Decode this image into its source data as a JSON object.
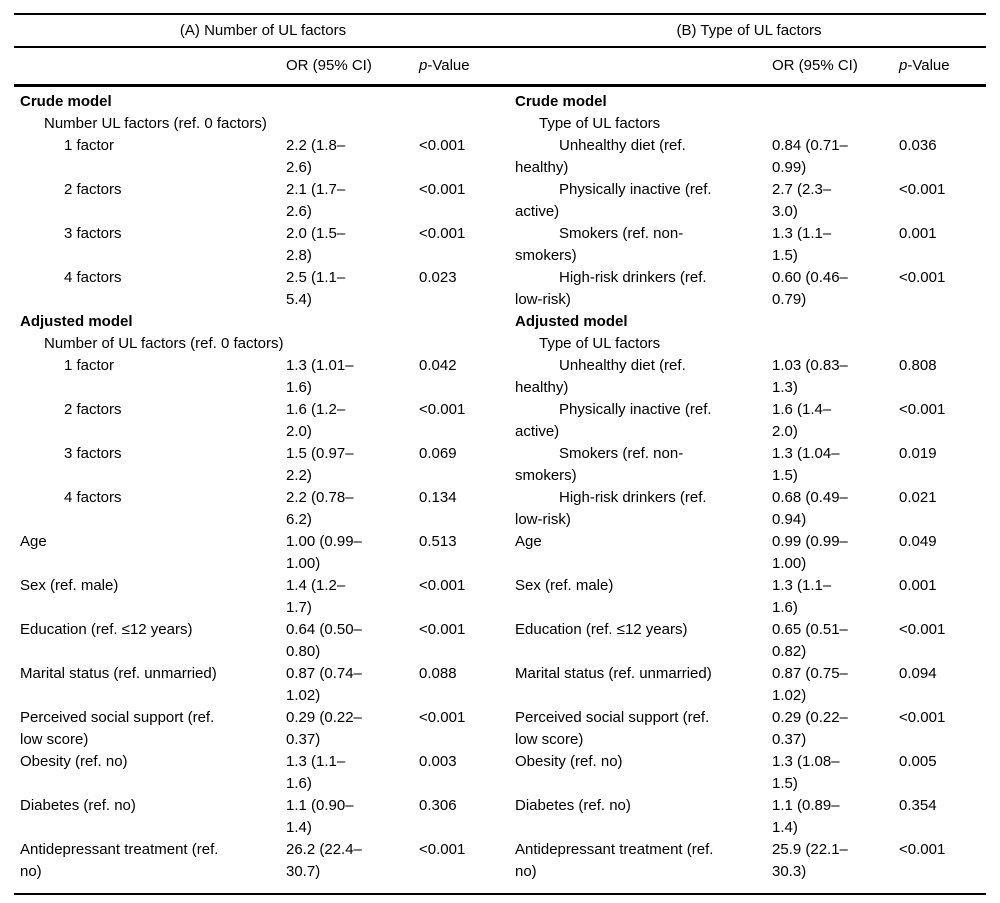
{
  "table": {
    "panels": [
      {
        "title": "(A) Number of UL factors",
        "or_header": "OR (95% CI)",
        "p_header_italic": "p",
        "p_header_rest": "-Value"
      },
      {
        "title": "(B) Type of UL factors",
        "or_header": "OR (95% CI)",
        "p_header_italic": "p",
        "p_header_rest": "-Value"
      }
    ],
    "rows": [
      {
        "left": {
          "label": "Crude model",
          "style": "section",
          "or": "",
          "p": ""
        },
        "right": {
          "label": "Crude model",
          "style": "section",
          "or": "",
          "p": ""
        }
      },
      {
        "left": {
          "label": "Number UL factors (ref. 0 factors)",
          "style": "ind1",
          "or": "",
          "p": ""
        },
        "right": {
          "label": "Type of UL factors",
          "style": "ind1",
          "or": "",
          "p": ""
        }
      },
      {
        "left": {
          "label": "1 factor",
          "style": "ind2",
          "or": "2.2 (1.8–\n2.6)",
          "p": "<0.001"
        },
        "right": {
          "label": "Unhealthy diet (ref.\nhealthy)",
          "style": "ind2",
          "or": "0.84 (0.71–\n0.99)",
          "p": "0.036"
        }
      },
      {
        "left": {
          "label": "2 factors",
          "style": "ind2",
          "or": "2.1 (1.7–\n2.6)",
          "p": "<0.001"
        },
        "right": {
          "label": "Physically inactive (ref.\nactive)",
          "style": "ind2",
          "or": "2.7 (2.3–\n3.0)",
          "p": "<0.001"
        }
      },
      {
        "left": {
          "label": "3 factors",
          "style": "ind2",
          "or": "2.0 (1.5–\n2.8)",
          "p": "<0.001"
        },
        "right": {
          "label": "Smokers (ref. non-\nsmokers)",
          "style": "ind2",
          "or": "1.3 (1.1–\n1.5)",
          "p": "0.001"
        }
      },
      {
        "left": {
          "label": "4 factors",
          "style": "ind2",
          "or": "2.5 (1.1–\n5.4)",
          "p": "0.023"
        },
        "right": {
          "label": "High-risk drinkers (ref.\nlow-risk)",
          "style": "ind2",
          "or": "0.60 (0.46–\n0.79)",
          "p": "<0.001"
        }
      },
      {
        "left": {
          "label": "Adjusted model",
          "style": "section",
          "or": "",
          "p": ""
        },
        "right": {
          "label": "Adjusted model",
          "style": "section",
          "or": "",
          "p": ""
        }
      },
      {
        "left": {
          "label": "Number of UL factors (ref. 0 factors)",
          "style": "ind1",
          "or": "",
          "p": ""
        },
        "right": {
          "label": "Type of UL factors",
          "style": "ind1",
          "or": "",
          "p": ""
        }
      },
      {
        "left": {
          "label": "1 factor",
          "style": "ind2",
          "or": "1.3 (1.01–\n1.6)",
          "p": "0.042"
        },
        "right": {
          "label": "Unhealthy diet (ref.\nhealthy)",
          "style": "ind2",
          "or": "1.03 (0.83–\n1.3)",
          "p": "0.808"
        }
      },
      {
        "left": {
          "label": "2 factors",
          "style": "ind2",
          "or": "1.6 (1.2–\n2.0)",
          "p": "<0.001"
        },
        "right": {
          "label": "Physically inactive (ref.\nactive)",
          "style": "ind2",
          "or": "1.6 (1.4–\n2.0)",
          "p": "<0.001"
        }
      },
      {
        "left": {
          "label": "3 factors",
          "style": "ind2",
          "or": "1.5 (0.97–\n2.2)",
          "p": "0.069"
        },
        "right": {
          "label": "Smokers (ref. non-\nsmokers)",
          "style": "ind2",
          "or": "1.3 (1.04–\n1.5)",
          "p": "0.019"
        }
      },
      {
        "left": {
          "label": "4 factors",
          "style": "ind2",
          "or": "2.2 (0.78–\n6.2)",
          "p": "0.134"
        },
        "right": {
          "label": "High-risk drinkers (ref.\nlow-risk)",
          "style": "ind2",
          "or": "0.68 (0.49–\n0.94)",
          "p": "0.021"
        }
      },
      {
        "left": {
          "label": "Age",
          "style": "base",
          "or": "1.00 (0.99–\n1.00)",
          "p": "0.513"
        },
        "right": {
          "label": "Age",
          "style": "base",
          "or": "0.99 (0.99–\n1.00)",
          "p": "0.049"
        }
      },
      {
        "left": {
          "label": "Sex (ref. male)",
          "style": "base",
          "or": "1.4 (1.2–\n1.7)",
          "p": "<0.001"
        },
        "right": {
          "label": "Sex (ref. male)",
          "style": "base",
          "or": "1.3 (1.1–\n1.6)",
          "p": "0.001"
        }
      },
      {
        "left": {
          "label": "Education (ref. ≤12 years)",
          "style": "base",
          "or": "0.64 (0.50–\n0.80)",
          "p": "<0.001"
        },
        "right": {
          "label": "Education (ref. ≤12 years)",
          "style": "base",
          "or": "0.65 (0.51–\n0.82)",
          "p": "<0.001"
        }
      },
      {
        "left": {
          "label": "Marital status (ref. unmarried)",
          "style": "base",
          "or": "0.87 (0.74–\n1.02)",
          "p": "0.088"
        },
        "right": {
          "label": "Marital status (ref. unmarried)",
          "style": "base",
          "or": "0.87 (0.75–\n1.02)",
          "p": "0.094"
        }
      },
      {
        "left": {
          "label": "Perceived social support (ref.\nlow score)",
          "style": "base",
          "or": "0.29 (0.22–\n0.37)",
          "p": "<0.001"
        },
        "right": {
          "label": "Perceived social support (ref.\nlow score)",
          "style": "base",
          "or": "0.29 (0.22–\n0.37)",
          "p": "<0.001"
        }
      },
      {
        "left": {
          "label": "Obesity (ref. no)",
          "style": "base",
          "or": "1.3 (1.1–\n1.6)",
          "p": "0.003"
        },
        "right": {
          "label": "Obesity (ref. no)",
          "style": "base",
          "or": "1.3 (1.08–\n1.5)",
          "p": "0.005"
        }
      },
      {
        "left": {
          "label": "Diabetes (ref. no)",
          "style": "base",
          "or": "1.1 (0.90–\n1.4)",
          "p": "0.306"
        },
        "right": {
          "label": "Diabetes (ref. no)",
          "style": "base",
          "or": "1.1 (0.89–\n1.4)",
          "p": "0.354"
        }
      },
      {
        "left": {
          "label": "Antidepressant treatment (ref.\nno)",
          "style": "base",
          "or": "26.2 (22.4–\n30.7)",
          "p": "<0.001"
        },
        "right": {
          "label": "Antidepressant treatment (ref.\nno)",
          "style": "base",
          "or": "25.9 (22.1–\n30.3)",
          "p": "<0.001"
        }
      }
    ]
  }
}
